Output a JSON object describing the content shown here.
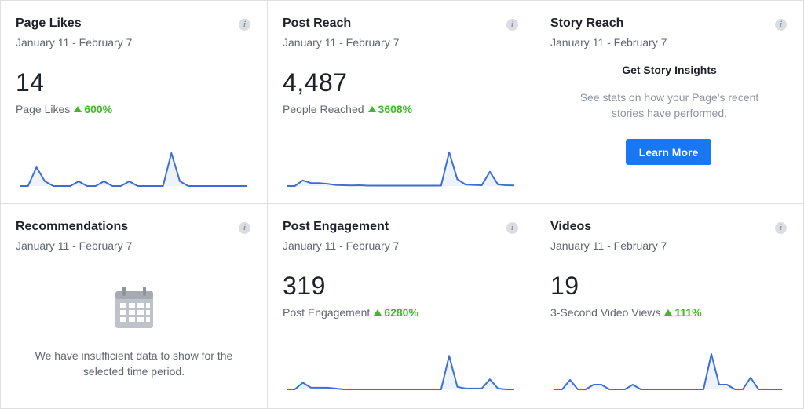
{
  "cards": [
    {
      "title": "Page Likes",
      "date_range": "January 11 - February 7",
      "value": "14",
      "metric": "Page Likes",
      "change": "600%",
      "chart_data": {
        "type": "line",
        "values": [
          0,
          0,
          4,
          1,
          0,
          0,
          0,
          1,
          0,
          0,
          1,
          0,
          0,
          1,
          0,
          0,
          0,
          0,
          7,
          1,
          0,
          0,
          0,
          0,
          0,
          0,
          0,
          0
        ],
        "ylim": [
          0,
          8
        ]
      }
    },
    {
      "title": "Post Reach",
      "date_range": "January 11 - February 7",
      "value": "4,487",
      "metric": "People Reached",
      "change": "3608%",
      "chart_data": {
        "type": "line",
        "values": [
          0,
          0,
          150,
          80,
          80,
          60,
          30,
          20,
          15,
          20,
          10,
          10,
          10,
          10,
          10,
          10,
          10,
          10,
          10,
          10,
          900,
          180,
          40,
          30,
          20,
          380,
          40,
          20,
          15
        ],
        "ylim": [
          0,
          1000
        ]
      }
    },
    {
      "title": "Story Reach",
      "date_range": "January 11 - February 7",
      "heading": "Get Story Insights",
      "description": "See stats on how your Page's recent stories have performed.",
      "button_label": "Learn More"
    },
    {
      "title": "Recommendations",
      "date_range": "January 11 - February 7",
      "empty_text": "We have insufficient data to show for the selected time period."
    },
    {
      "title": "Post Engagement",
      "date_range": "January 11 - February 7",
      "value": "319",
      "metric": "Post Engagement",
      "change": "6280%",
      "chart_data": {
        "type": "line",
        "values": [
          0,
          0,
          8,
          2,
          2,
          2,
          1,
          0,
          0,
          0,
          0,
          0,
          0,
          0,
          0,
          0,
          0,
          0,
          0,
          0,
          40,
          3,
          1,
          1,
          1,
          12,
          1,
          0,
          0
        ],
        "ylim": [
          0,
          45
        ]
      }
    },
    {
      "title": "Videos",
      "date_range": "January 11 - February 7",
      "value": "19",
      "metric": "3-Second Video Views",
      "change": "111%",
      "chart_data": {
        "type": "line",
        "values": [
          0,
          0,
          4,
          0,
          0,
          2,
          2,
          0,
          0,
          0,
          2,
          0,
          0,
          0,
          0,
          0,
          0,
          0,
          0,
          0,
          15,
          2,
          2,
          0,
          0,
          5,
          0,
          0,
          0,
          0
        ],
        "ylim": [
          0,
          16
        ]
      }
    }
  ],
  "colors": {
    "line": "#3b6fd6",
    "fill": "#eef2fb",
    "positive": "#42b72a",
    "button": "#1877f2"
  },
  "info_icon": "i"
}
